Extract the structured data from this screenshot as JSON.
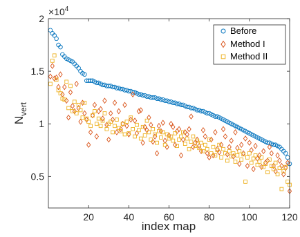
{
  "chart_data": {
    "type": "scatter",
    "title": "",
    "xlabel": "index map",
    "ylabel": "N",
    "ylabel_subscript": "vert",
    "y_exponent_base": "×10",
    "y_exponent_power": "4",
    "xlim": [
      0,
      120
    ],
    "ylim": [
      0.2,
      2.0
    ],
    "x_ticks": [
      20,
      40,
      60,
      80,
      100,
      120
    ],
    "x_tick_labels": [
      "20",
      "40",
      "60",
      "80",
      "100",
      "120"
    ],
    "y_ticks": [
      0.5,
      1,
      1.5,
      2
    ],
    "y_tick_labels": [
      "0.5",
      "1",
      "1.5",
      "2"
    ],
    "grid": false,
    "legend_position": "top-right",
    "series": [
      {
        "name": "Before",
        "marker": "circle",
        "color": "#0072BD",
        "x": [
          1,
          2,
          3,
          4,
          5,
          6,
          7,
          8,
          9,
          10,
          11,
          12,
          13,
          14,
          15,
          16,
          17,
          18,
          19,
          20,
          21,
          22,
          23,
          24,
          25,
          26,
          27,
          28,
          29,
          30,
          31,
          32,
          33,
          34,
          35,
          36,
          37,
          38,
          39,
          40,
          41,
          42,
          43,
          44,
          45,
          46,
          47,
          48,
          49,
          50,
          51,
          52,
          53,
          54,
          55,
          56,
          57,
          58,
          59,
          60,
          61,
          62,
          63,
          64,
          65,
          66,
          67,
          68,
          69,
          70,
          71,
          72,
          73,
          74,
          75,
          76,
          77,
          78,
          79,
          80,
          81,
          82,
          83,
          84,
          85,
          86,
          87,
          88,
          89,
          90,
          91,
          92,
          93,
          94,
          95,
          96,
          97,
          98,
          99,
          100,
          101,
          102,
          103,
          104,
          105,
          106,
          107,
          108,
          109,
          110,
          111,
          112,
          113,
          114,
          115,
          116,
          117,
          118,
          119,
          120
        ],
        "y": [
          1.89,
          1.86,
          1.84,
          1.81,
          1.75,
          1.73,
          1.66,
          1.64,
          1.62,
          1.61,
          1.6,
          1.59,
          1.57,
          1.55,
          1.53,
          1.5,
          1.48,
          1.47,
          1.41,
          1.41,
          1.41,
          1.41,
          1.4,
          1.39,
          1.39,
          1.38,
          1.37,
          1.37,
          1.36,
          1.36,
          1.36,
          1.35,
          1.35,
          1.34,
          1.34,
          1.33,
          1.33,
          1.32,
          1.32,
          1.31,
          1.31,
          1.3,
          1.3,
          1.29,
          1.28,
          1.28,
          1.27,
          1.27,
          1.26,
          1.26,
          1.25,
          1.25,
          1.25,
          1.24,
          1.24,
          1.23,
          1.23,
          1.22,
          1.22,
          1.21,
          1.21,
          1.2,
          1.2,
          1.19,
          1.19,
          1.18,
          1.18,
          1.17,
          1.16,
          1.16,
          1.15,
          1.15,
          1.14,
          1.13,
          1.13,
          1.12,
          1.12,
          1.11,
          1.1,
          1.1,
          1.09,
          1.08,
          1.07,
          1.07,
          1.06,
          1.05,
          1.04,
          1.03,
          1.02,
          1.01,
          1.0,
          0.99,
          0.98,
          0.97,
          0.96,
          0.95,
          0.94,
          0.93,
          0.92,
          0.91,
          0.9,
          0.89,
          0.88,
          0.87,
          0.86,
          0.85,
          0.84,
          0.83,
          0.82,
          0.82,
          0.81,
          0.8,
          0.8,
          0.79,
          0.78,
          0.76,
          0.74,
          0.72,
          0.68,
          0.62
        ]
      },
      {
        "name": "Method I",
        "marker": "diamond",
        "color": "#D95319",
        "x": [
          1,
          2,
          3,
          4,
          5,
          6,
          7,
          8,
          9,
          10,
          11,
          12,
          13,
          14,
          15,
          16,
          17,
          18,
          19,
          20,
          21,
          22,
          23,
          24,
          25,
          26,
          27,
          28,
          29,
          30,
          31,
          32,
          33,
          34,
          35,
          36,
          37,
          38,
          39,
          40,
          41,
          42,
          43,
          44,
          45,
          46,
          47,
          48,
          49,
          50,
          51,
          52,
          53,
          54,
          55,
          56,
          57,
          58,
          59,
          60,
          61,
          62,
          63,
          64,
          65,
          66,
          67,
          68,
          69,
          70,
          71,
          72,
          73,
          74,
          75,
          76,
          77,
          78,
          79,
          80,
          81,
          82,
          83,
          84,
          85,
          86,
          87,
          88,
          89,
          90,
          91,
          92,
          93,
          94,
          95,
          96,
          97,
          98,
          99,
          100,
          101,
          102,
          103,
          104,
          105,
          106,
          107,
          108,
          109,
          110,
          111,
          112,
          113,
          114,
          115,
          116,
          117,
          118,
          119,
          120
        ],
        "y": [
          1.45,
          1.55,
          1.43,
          1.44,
          1.35,
          1.47,
          1.28,
          1.35,
          1.22,
          1.06,
          1.3,
          1.17,
          1.12,
          1.38,
          1.15,
          1.02,
          1.2,
          1.1,
          1.04,
          0.8,
          0.92,
          1.08,
          1.18,
          0.88,
          1.12,
          1.14,
          1.05,
          1.22,
          0.99,
          0.85,
          1.1,
          1.04,
          1.2,
          0.92,
          1.12,
          0.95,
          1.0,
          1.18,
          0.98,
          0.9,
          1.04,
          1.28,
          1.03,
          0.91,
          1.12,
          1.13,
          0.82,
          0.97,
          0.94,
          1.06,
          0.99,
          0.83,
          0.88,
          0.72,
          0.98,
          0.93,
          1.01,
          0.84,
          0.78,
          0.89,
          1.0,
          0.97,
          0.8,
          0.93,
          0.95,
          0.7,
          0.85,
          0.92,
          0.9,
          0.95,
          1.07,
          0.78,
          0.82,
          0.85,
          0.79,
          0.74,
          0.94,
          0.88,
          0.72,
          0.68,
          0.85,
          0.7,
          0.92,
          0.76,
          0.73,
          0.8,
          0.95,
          0.88,
          0.71,
          0.78,
          0.84,
          0.69,
          0.92,
          0.77,
          0.62,
          0.8,
          0.72,
          0.86,
          0.6,
          0.82,
          0.75,
          0.57,
          0.79,
          0.67,
          0.7,
          0.59,
          0.74,
          0.63,
          0.65,
          0.78,
          0.72,
          0.6,
          0.55,
          0.7,
          0.65,
          0.6,
          0.52,
          0.58,
          0.63,
          0.36
        ]
      },
      {
        "name": "Method II",
        "marker": "square",
        "color": "#EDB120",
        "x": [
          1,
          2,
          3,
          4,
          5,
          6,
          7,
          8,
          9,
          10,
          11,
          12,
          13,
          14,
          15,
          16,
          17,
          18,
          19,
          20,
          21,
          22,
          23,
          24,
          25,
          26,
          27,
          28,
          29,
          30,
          31,
          32,
          33,
          34,
          35,
          36,
          37,
          38,
          39,
          40,
          41,
          42,
          43,
          44,
          45,
          46,
          47,
          48,
          49,
          50,
          51,
          52,
          53,
          54,
          55,
          56,
          57,
          58,
          59,
          60,
          61,
          62,
          63,
          64,
          65,
          66,
          67,
          68,
          69,
          70,
          71,
          72,
          73,
          74,
          75,
          76,
          77,
          78,
          79,
          80,
          81,
          82,
          83,
          84,
          85,
          86,
          87,
          88,
          89,
          90,
          91,
          92,
          93,
          94,
          95,
          96,
          97,
          98,
          99,
          100,
          101,
          102,
          103,
          104,
          105,
          106,
          107,
          108,
          109,
          110,
          111,
          112,
          113,
          114,
          115,
          116,
          117,
          118,
          119,
          120
        ],
        "y": [
          1.38,
          1.6,
          1.65,
          1.42,
          1.32,
          1.29,
          1.24,
          1.23,
          1.4,
          1.15,
          1.36,
          1.12,
          1.21,
          1.1,
          1.18,
          1.13,
          1.06,
          1.2,
          1.05,
          1.02,
          0.98,
          1.08,
          1.12,
          1.0,
          1.05,
          0.98,
          1.03,
          1.1,
          0.95,
          1.0,
          1.02,
          0.92,
          0.98,
          1.04,
          0.96,
          0.93,
          1.0,
          0.9,
          1.02,
          0.91,
          1.06,
          0.95,
          0.88,
          0.99,
          0.94,
          0.86,
          0.97,
          0.89,
          1.03,
          0.92,
          0.85,
          0.95,
          0.9,
          0.82,
          0.93,
          0.87,
          0.92,
          0.8,
          0.9,
          0.86,
          0.88,
          0.84,
          0.91,
          0.79,
          0.85,
          0.88,
          0.92,
          0.81,
          0.86,
          0.76,
          0.83,
          0.88,
          0.79,
          0.84,
          0.77,
          0.82,
          0.74,
          0.8,
          0.76,
          0.85,
          0.72,
          0.78,
          0.7,
          0.75,
          0.8,
          0.68,
          0.76,
          0.72,
          0.65,
          0.74,
          0.69,
          0.72,
          0.64,
          0.7,
          0.74,
          0.66,
          0.71,
          0.45,
          0.68,
          0.72,
          0.63,
          0.67,
          0.7,
          0.61,
          0.64,
          0.68,
          0.59,
          0.62,
          0.54,
          0.66,
          0.6,
          0.57,
          0.63,
          0.52,
          0.58,
          0.38,
          0.55,
          0.59,
          0.45,
          0.42
        ]
      }
    ]
  }
}
